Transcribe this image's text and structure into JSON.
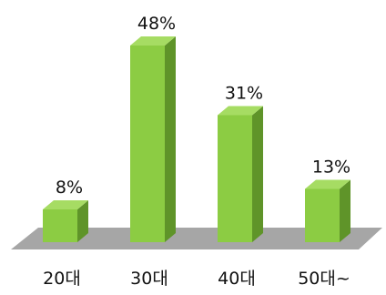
{
  "chart_data": {
    "type": "bar",
    "categories": [
      "20대",
      "30대",
      "40대",
      "50대~"
    ],
    "values": [
      8,
      48,
      31,
      13
    ],
    "value_labels": [
      "8%",
      "48%",
      "31%",
      "13%"
    ],
    "unit": "%",
    "ylim": [
      0,
      48
    ],
    "grid": false,
    "legend": "none",
    "colors": {
      "bar_front": "#8ccc43",
      "bar_top": "#a6dc63",
      "bar_side": "#5f9429",
      "floor": "#a6a6a6"
    }
  }
}
